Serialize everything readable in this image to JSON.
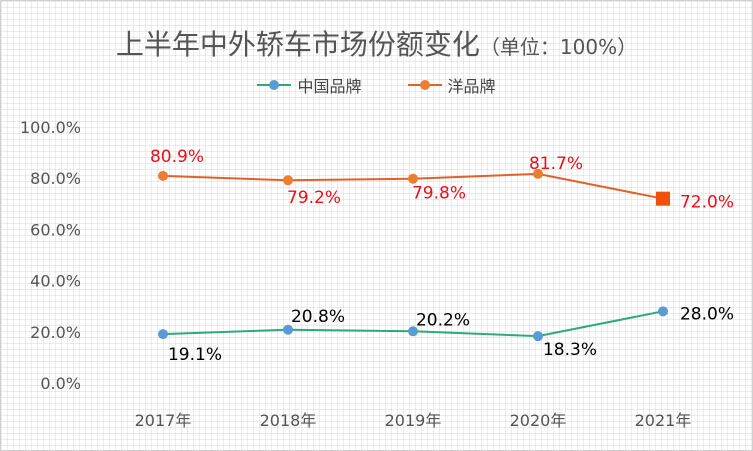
{
  "chart_data": {
    "type": "line",
    "title": "上半年中外轿车市场份额变化",
    "subtitle": "（单位：100%）",
    "categories": [
      "2017年",
      "2018年",
      "2019年",
      "2020年",
      "2021年"
    ],
    "y_ticks": [
      "0.0%",
      "20.0%",
      "40.0%",
      "60.0%",
      "80.0%",
      "100.0%"
    ],
    "ylim": [
      0,
      100
    ],
    "grid": true,
    "legend_position": "top-center",
    "series": [
      {
        "name": "中国品牌",
        "color": "#2eaa7a",
        "marker_color": "#5b9bd5",
        "label_color": "#000000",
        "values": [
          19.1,
          20.8,
          20.2,
          18.3,
          28.0
        ],
        "labels": [
          "19.1%",
          "20.8%",
          "20.2%",
          "18.3%",
          "28.0%"
        ]
      },
      {
        "name": "洋品牌",
        "color": "#e0622a",
        "marker_color": "#ed7d31",
        "last_marker_color": "#f0500a",
        "label_color": "#e8101a",
        "values": [
          80.9,
          79.2,
          79.8,
          81.7,
          72.0
        ],
        "labels": [
          "80.9%",
          "79.2%",
          "79.8%",
          "81.7%",
          "72.0%"
        ]
      }
    ]
  }
}
